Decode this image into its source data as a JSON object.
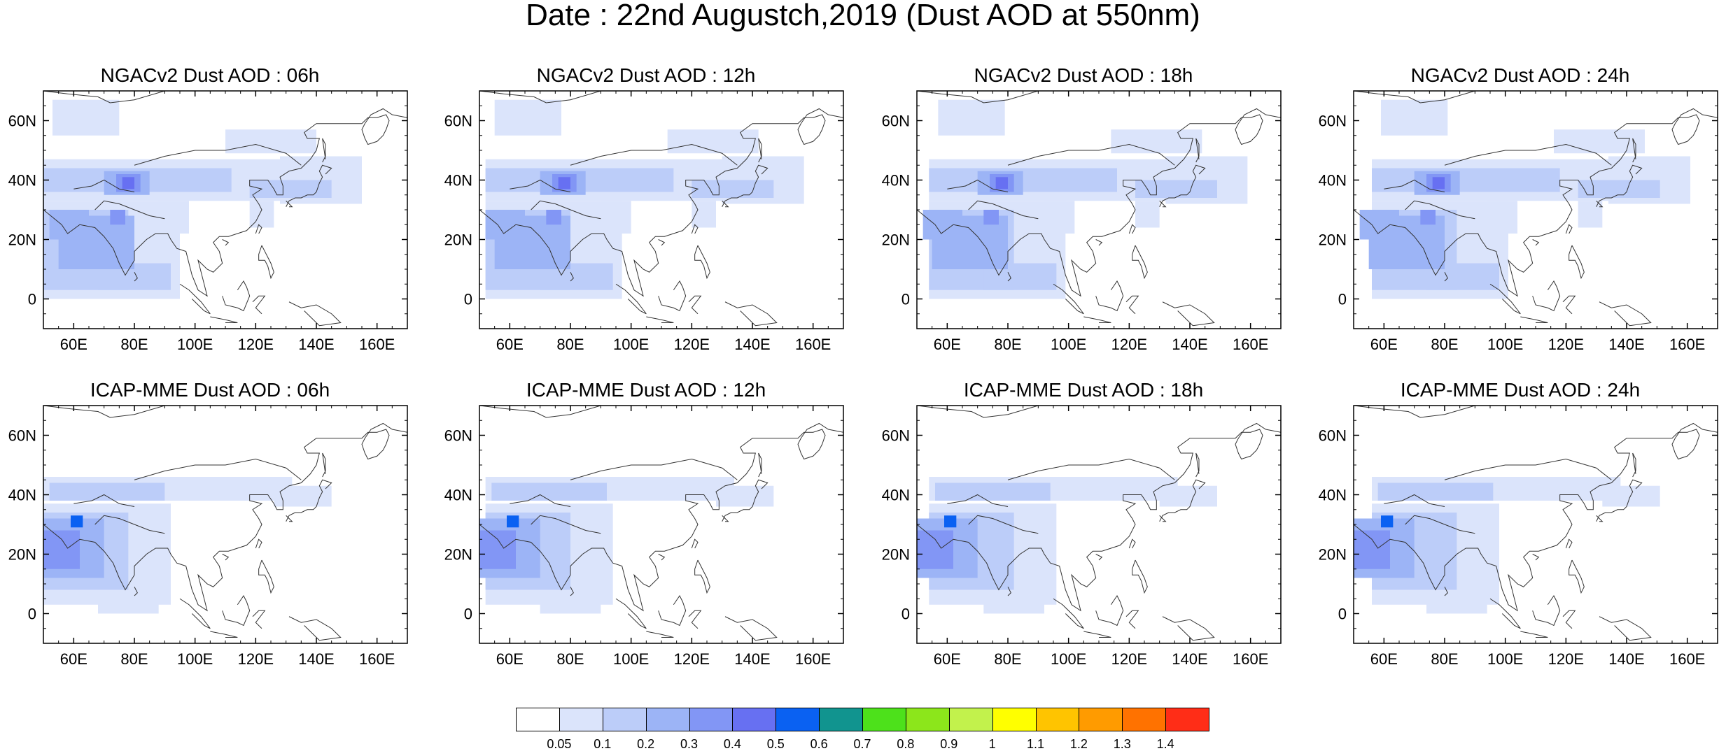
{
  "title": "Date : 22nd Augustch,2019 (Dust AOD at 550nm)",
  "axes": {
    "lat_ticks": [
      "60N",
      "40N",
      "20N",
      "0"
    ],
    "lon_ticks": [
      "60E",
      "80E",
      "100E",
      "120E",
      "140E",
      "160E"
    ],
    "lat_range": [
      -10,
      70
    ],
    "lon_range": [
      50,
      170
    ]
  },
  "panels": [
    {
      "id": "ngac-06",
      "title": "NGACv2 Dust AOD : 06h",
      "model": "NGACv2",
      "lead": "06h"
    },
    {
      "id": "ngac-12",
      "title": "NGACv2 Dust AOD : 12h",
      "model": "NGACv2",
      "lead": "12h"
    },
    {
      "id": "ngac-18",
      "title": "NGACv2 Dust AOD : 18h",
      "model": "NGACv2",
      "lead": "18h"
    },
    {
      "id": "ngac-24",
      "title": "NGACv2 Dust AOD : 24h",
      "model": "NGACv2",
      "lead": "24h"
    },
    {
      "id": "icap-06",
      "title": "ICAP-MME Dust AOD : 06h",
      "model": "ICAP-MME",
      "lead": "06h"
    },
    {
      "id": "icap-12",
      "title": "ICAP-MME Dust AOD : 12h",
      "model": "ICAP-MME",
      "lead": "12h"
    },
    {
      "id": "icap-18",
      "title": "ICAP-MME Dust AOD : 18h",
      "model": "ICAP-MME",
      "lead": "18h"
    },
    {
      "id": "icap-24",
      "title": "ICAP-MME Dust AOD : 24h",
      "model": "ICAP-MME",
      "lead": "24h"
    }
  ],
  "colorbar": {
    "labels": [
      "0.05",
      "0.1",
      "0.2",
      "0.3",
      "0.4",
      "0.5",
      "0.6",
      "0.7",
      "0.8",
      "0.9",
      "1",
      "1.1",
      "1.2",
      "1.3",
      "1.4"
    ],
    "colors": [
      "#ffffff",
      "#dbe4fb",
      "#bccdf9",
      "#9cb4f6",
      "#8296f5",
      "#6770f2",
      "#0a61f2",
      "#11948f",
      "#4de11b",
      "#8ce61b",
      "#c2f24c",
      "#ffff00",
      "#ffc400",
      "#ff9b00",
      "#ff7200",
      "#ff2d17"
    ]
  }
}
